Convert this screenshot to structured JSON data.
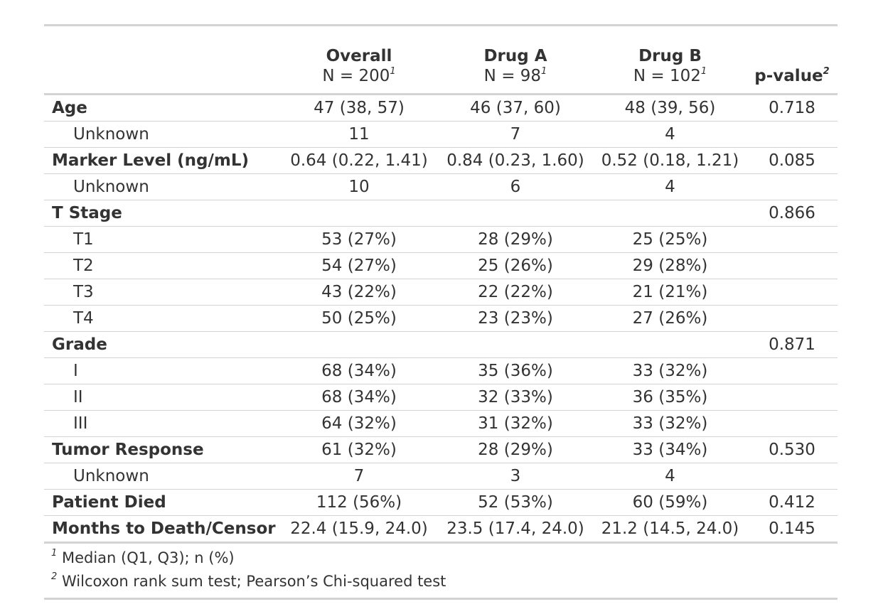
{
  "table": {
    "columns": [
      {
        "title": "Overall",
        "subtitle": "N = 200",
        "note": "1"
      },
      {
        "title": "Drug A",
        "subtitle": "N = 98",
        "note": "1"
      },
      {
        "title": "Drug B",
        "subtitle": "N = 102",
        "note": "1"
      },
      {
        "title": "p-value",
        "note": "2"
      }
    ],
    "variables": [
      {
        "label": "Age",
        "cells": [
          "47 (38, 57)",
          "46 (37, 60)",
          "48 (39, 56)",
          "0.718"
        ],
        "levels": [
          {
            "label": "Unknown",
            "cells": [
              "11",
              "7",
              "4",
              null
            ]
          }
        ]
      },
      {
        "label": "Marker Level (ng/mL)",
        "cells": [
          "0.64 (0.22, 1.41)",
          "0.84 (0.23, 1.60)",
          "0.52 (0.18, 1.21)",
          "0.085"
        ],
        "levels": [
          {
            "label": "Unknown",
            "cells": [
              "10",
              "6",
              "4",
              null
            ]
          }
        ]
      },
      {
        "label": "T Stage",
        "cells": [
          null,
          null,
          null,
          "0.866"
        ],
        "levels": [
          {
            "label": "T1",
            "cells": [
              "53 (27%)",
              "28 (29%)",
              "25 (25%)",
              null
            ]
          },
          {
            "label": "T2",
            "cells": [
              "54 (27%)",
              "25 (26%)",
              "29 (28%)",
              null
            ]
          },
          {
            "label": "T3",
            "cells": [
              "43 (22%)",
              "22 (22%)",
              "21 (21%)",
              null
            ]
          },
          {
            "label": "T4",
            "cells": [
              "50 (25%)",
              "23 (23%)",
              "27 (26%)",
              null
            ]
          }
        ]
      },
      {
        "label": "Grade",
        "cells": [
          null,
          null,
          null,
          "0.871"
        ],
        "levels": [
          {
            "label": "I",
            "cells": [
              "68 (34%)",
              "35 (36%)",
              "33 (32%)",
              null
            ]
          },
          {
            "label": "II",
            "cells": [
              "68 (34%)",
              "32 (33%)",
              "36 (35%)",
              null
            ]
          },
          {
            "label": "III",
            "cells": [
              "64 (32%)",
              "31 (32%)",
              "33 (32%)",
              null
            ]
          }
        ]
      },
      {
        "label": "Tumor Response",
        "cells": [
          "61 (32%)",
          "28 (29%)",
          "33 (34%)",
          "0.530"
        ],
        "levels": [
          {
            "label": "Unknown",
            "cells": [
              "7",
              "3",
              "4",
              null
            ]
          }
        ]
      },
      {
        "label": "Patient Died",
        "cells": [
          "112 (56%)",
          "52 (53%)",
          "60 (59%)",
          "0.412"
        ],
        "levels": []
      },
      {
        "label": "Months to Death/Censor",
        "cells": [
          "22.4 (15.9, 24.0)",
          "23.5 (17.4, 24.0)",
          "21.2 (14.5, 24.0)",
          "0.145"
        ],
        "levels": []
      }
    ],
    "footnotes": [
      {
        "mark": "1",
        "text": "Median (Q1, Q3); n (%)"
      },
      {
        "mark": "2",
        "text": "Wilcoxon rank sum test; Pearson’s Chi-squared test"
      }
    ]
  }
}
